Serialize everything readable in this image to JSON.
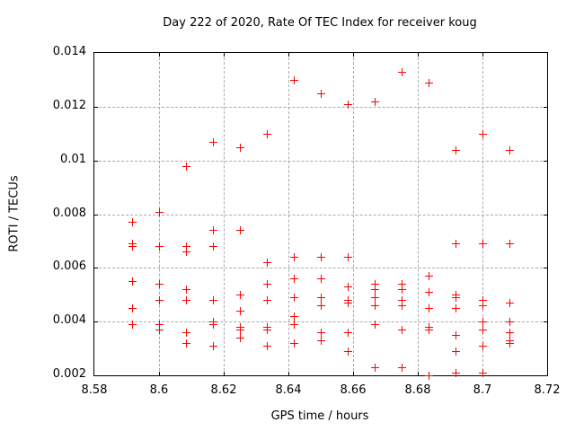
{
  "chart_data": {
    "type": "scatter",
    "title": "Day 222 of 2020, Rate Of TEC Index for receiver koug",
    "xlabel": "GPS time / hours",
    "ylabel": "ROTI / TECUs",
    "xlim": [
      8.58,
      8.72
    ],
    "ylim": [
      0.002,
      0.014
    ],
    "xticks": [
      8.58,
      8.6,
      8.62,
      8.64,
      8.66,
      8.68,
      8.7,
      8.72
    ],
    "xtick_labels": [
      "8.58",
      "8.6",
      "8.62",
      "8.64",
      "8.66",
      "8.68",
      "8.7",
      "8.72"
    ],
    "yticks": [
      0.002,
      0.004,
      0.006,
      0.008,
      0.01,
      0.012,
      0.014
    ],
    "ytick_labels": [
      "0.002",
      "0.004",
      "0.006",
      "0.008",
      "0.01",
      "0.012",
      "0.014"
    ],
    "grid": true,
    "legend": "none",
    "marker": "plus",
    "marker_color": "#ff0000",
    "grid_color": "#a9a9a9",
    "points": [
      [
        8.5917,
        0.0077
      ],
      [
        8.5917,
        0.0069
      ],
      [
        8.5917,
        0.0068
      ],
      [
        8.5917,
        0.0055
      ],
      [
        8.5917,
        0.0045
      ],
      [
        8.5917,
        0.0039
      ],
      [
        8.6,
        0.0081
      ],
      [
        8.6,
        0.0068
      ],
      [
        8.6,
        0.0054
      ],
      [
        8.6,
        0.0048
      ],
      [
        8.6,
        0.0039
      ],
      [
        8.6,
        0.0037
      ],
      [
        8.6083,
        0.0098
      ],
      [
        8.6083,
        0.0068
      ],
      [
        8.6083,
        0.0066
      ],
      [
        8.6083,
        0.0052
      ],
      [
        8.6083,
        0.0048
      ],
      [
        8.6083,
        0.0036
      ],
      [
        8.6083,
        0.0032
      ],
      [
        8.6167,
        0.0107
      ],
      [
        8.6167,
        0.0074
      ],
      [
        8.6167,
        0.0068
      ],
      [
        8.6167,
        0.0048
      ],
      [
        8.6167,
        0.004
      ],
      [
        8.6167,
        0.0039
      ],
      [
        8.6167,
        0.0031
      ],
      [
        8.625,
        0.0105
      ],
      [
        8.625,
        0.0074
      ],
      [
        8.625,
        0.005
      ],
      [
        8.625,
        0.0044
      ],
      [
        8.625,
        0.0038
      ],
      [
        8.625,
        0.0037
      ],
      [
        8.625,
        0.0034
      ],
      [
        8.6333,
        0.011
      ],
      [
        8.6333,
        0.0062
      ],
      [
        8.6333,
        0.0054
      ],
      [
        8.6333,
        0.0048
      ],
      [
        8.6333,
        0.0038
      ],
      [
        8.6333,
        0.0037
      ],
      [
        8.6333,
        0.0031
      ],
      [
        8.6417,
        0.013
      ],
      [
        8.6417,
        0.0064
      ],
      [
        8.6417,
        0.0056
      ],
      [
        8.6417,
        0.0049
      ],
      [
        8.6417,
        0.0042
      ],
      [
        8.6417,
        0.0039
      ],
      [
        8.6417,
        0.0032
      ],
      [
        8.65,
        0.0125
      ],
      [
        8.65,
        0.0064
      ],
      [
        8.65,
        0.0056
      ],
      [
        8.65,
        0.0049
      ],
      [
        8.65,
        0.0046
      ],
      [
        8.65,
        0.0036
      ],
      [
        8.65,
        0.0033
      ],
      [
        8.6583,
        0.0121
      ],
      [
        8.6583,
        0.0064
      ],
      [
        8.6583,
        0.0053
      ],
      [
        8.6583,
        0.0048
      ],
      [
        8.6583,
        0.0047
      ],
      [
        8.6583,
        0.0036
      ],
      [
        8.6583,
        0.0029
      ],
      [
        8.6667,
        0.0122
      ],
      [
        8.6667,
        0.0054
      ],
      [
        8.6667,
        0.0052
      ],
      [
        8.6667,
        0.0049
      ],
      [
        8.6667,
        0.0046
      ],
      [
        8.6667,
        0.0039
      ],
      [
        8.6667,
        0.0023
      ],
      [
        8.675,
        0.0133
      ],
      [
        8.675,
        0.0054
      ],
      [
        8.675,
        0.0052
      ],
      [
        8.675,
        0.0048
      ],
      [
        8.675,
        0.0046
      ],
      [
        8.675,
        0.0037
      ],
      [
        8.675,
        0.0023
      ],
      [
        8.6833,
        0.0129
      ],
      [
        8.6833,
        0.0057
      ],
      [
        8.6833,
        0.0051
      ],
      [
        8.6833,
        0.0045
      ],
      [
        8.6833,
        0.0038
      ],
      [
        8.6833,
        0.0037
      ],
      [
        8.6833,
        0.002
      ],
      [
        8.6917,
        0.0104
      ],
      [
        8.6917,
        0.0069
      ],
      [
        8.6917,
        0.005
      ],
      [
        8.6917,
        0.0049
      ],
      [
        8.6917,
        0.0045
      ],
      [
        8.6917,
        0.0035
      ],
      [
        8.6917,
        0.0029
      ],
      [
        8.6917,
        0.0021
      ],
      [
        8.7,
        0.011
      ],
      [
        8.7,
        0.0069
      ],
      [
        8.7,
        0.0048
      ],
      [
        8.7,
        0.0046
      ],
      [
        8.7,
        0.004
      ],
      [
        8.7,
        0.0037
      ],
      [
        8.7,
        0.0031
      ],
      [
        8.7,
        0.0021
      ],
      [
        8.7083,
        0.0104
      ],
      [
        8.7083,
        0.0069
      ],
      [
        8.7083,
        0.0047
      ],
      [
        8.7083,
        0.004
      ],
      [
        8.7083,
        0.0036
      ],
      [
        8.7083,
        0.0033
      ],
      [
        8.7083,
        0.0032
      ]
    ]
  }
}
